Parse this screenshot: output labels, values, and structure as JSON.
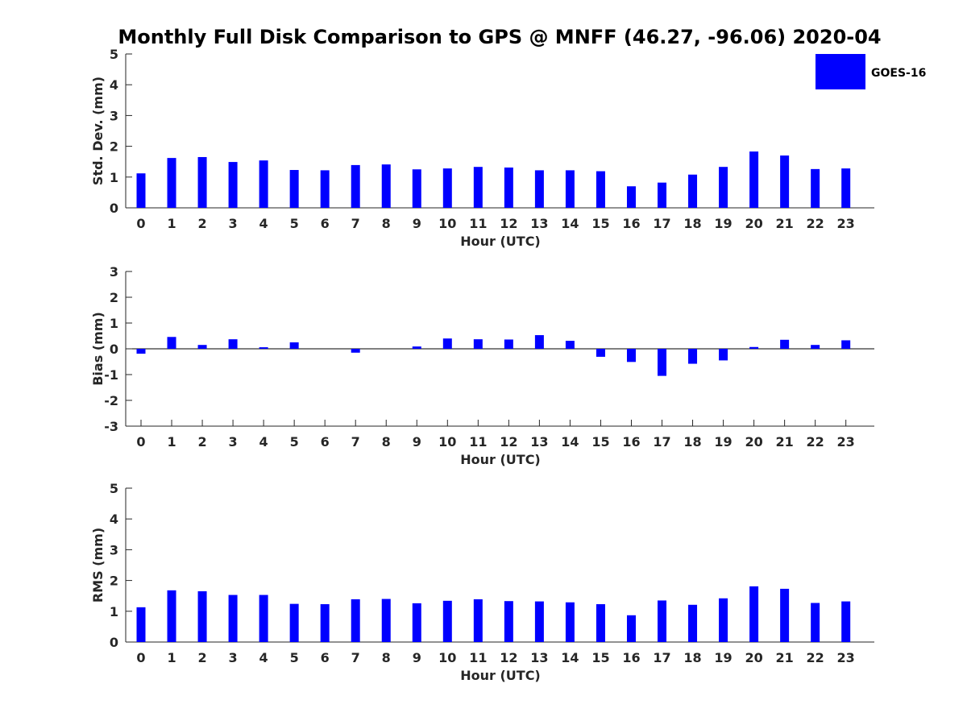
{
  "title": "Monthly Full Disk Comparison to GPS @ MNFF (46.27, -96.06) 2020-04",
  "legend": {
    "label": "GOES-16",
    "color": "#0000ff"
  },
  "chart_data": [
    {
      "type": "bar",
      "categories": [
        "0",
        "1",
        "2",
        "3",
        "4",
        "5",
        "6",
        "7",
        "8",
        "9",
        "10",
        "11",
        "12",
        "13",
        "14",
        "15",
        "16",
        "17",
        "18",
        "19",
        "20",
        "21",
        "22",
        "23"
      ],
      "series": [
        {
          "name": "GOES-16",
          "color": "#0000ff",
          "values": [
            1.12,
            1.62,
            1.65,
            1.49,
            1.54,
            1.23,
            1.22,
            1.39,
            1.41,
            1.25,
            1.28,
            1.33,
            1.31,
            1.22,
            1.22,
            1.19,
            0.7,
            0.82,
            1.08,
            1.33,
            1.83,
            1.7,
            1.26,
            1.28
          ]
        }
      ],
      "xlabel": "Hour (UTC)",
      "ylabel": "Std. Dev. (mm)",
      "ylim": [
        0,
        5
      ],
      "yticks": [
        "0",
        "1",
        "2",
        "3",
        "4",
        "5"
      ]
    },
    {
      "type": "bar",
      "categories": [
        "0",
        "1",
        "2",
        "3",
        "4",
        "5",
        "6",
        "7",
        "8",
        "9",
        "10",
        "11",
        "12",
        "13",
        "14",
        "15",
        "16",
        "17",
        "18",
        "19",
        "20",
        "21",
        "22",
        "23"
      ],
      "series": [
        {
          "name": "GOES-16",
          "color": "#0000ff",
          "values": [
            -0.19,
            0.46,
            0.15,
            0.37,
            0.06,
            0.25,
            0.0,
            -0.15,
            0.0,
            0.09,
            0.4,
            0.37,
            0.36,
            0.53,
            0.31,
            -0.31,
            -0.51,
            -1.05,
            -0.58,
            -0.45,
            0.07,
            0.35,
            0.15,
            0.33
          ]
        }
      ],
      "xlabel": "Hour (UTC)",
      "ylabel": "Bias (mm)",
      "ylim": [
        -3,
        3
      ],
      "yticks": [
        "-3",
        "-2",
        "-1",
        "0",
        "1",
        "2",
        "3"
      ]
    },
    {
      "type": "bar",
      "categories": [
        "0",
        "1",
        "2",
        "3",
        "4",
        "5",
        "6",
        "7",
        "8",
        "9",
        "10",
        "11",
        "12",
        "13",
        "14",
        "15",
        "16",
        "17",
        "18",
        "19",
        "20",
        "21",
        "22",
        "23"
      ],
      "series": [
        {
          "name": "GOES-16",
          "color": "#0000ff",
          "values": [
            1.13,
            1.68,
            1.65,
            1.53,
            1.53,
            1.24,
            1.23,
            1.39,
            1.4,
            1.26,
            1.34,
            1.39,
            1.33,
            1.32,
            1.29,
            1.23,
            0.87,
            1.35,
            1.21,
            1.42,
            1.81,
            1.73,
            1.27,
            1.32
          ]
        }
      ],
      "xlabel": "Hour (UTC)",
      "ylabel": "RMS (mm)",
      "ylim": [
        0,
        5
      ],
      "yticks": [
        "0",
        "1",
        "2",
        "3",
        "4",
        "5"
      ]
    }
  ]
}
